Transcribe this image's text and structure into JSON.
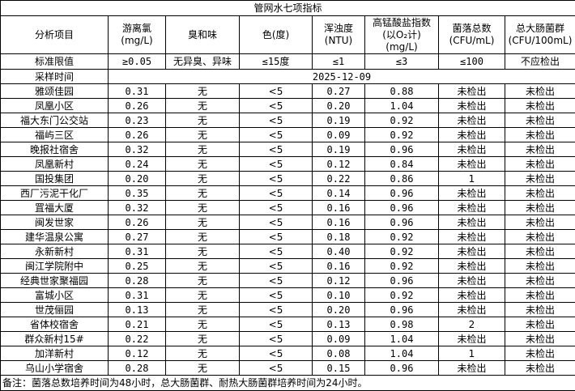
{
  "title": "管网水七项指标",
  "headers": [
    [
      "分析项目"
    ],
    [
      "游离氯",
      "(mg/L)"
    ],
    [
      "臭和味"
    ],
    [
      "色(度)"
    ],
    [
      "浑浊度",
      "(NTU)"
    ],
    [
      "高锰酸盐指数",
      "(以O₂计)",
      "(mg/L)"
    ],
    [
      "菌落总数",
      "(CFU/mL)"
    ],
    [
      "总大肠菌群",
      "(CFU/100mL)"
    ]
  ],
  "standard": [
    "标准限值",
    "≥0.05",
    "无异臭、异味",
    "≤15度",
    "≤1",
    "≤3",
    "≤100",
    "不应检出"
  ],
  "sampling": {
    "label": "采样时间",
    "date": "2025-12-09"
  },
  "rows": [
    [
      "雅颂佳园",
      "0.31",
      "无",
      "<5",
      "0.27",
      "0.88",
      "未检出",
      "未检出"
    ],
    [
      "凤凰小区",
      "0.26",
      "无",
      "<5",
      "0.20",
      "1.04",
      "未检出",
      "未检出"
    ],
    [
      "福大东门公交站",
      "0.23",
      "无",
      "<5",
      "0.19",
      "0.92",
      "未检出",
      "未检出"
    ],
    [
      "福屿三区",
      "0.26",
      "无",
      "<5",
      "0.09",
      "0.92",
      "未检出",
      "未检出"
    ],
    [
      "晚报社宿舍",
      "0.32",
      "无",
      "<5",
      "0.19",
      "0.96",
      "未检出",
      "未检出"
    ],
    [
      "凤凰新村",
      "0.24",
      "无",
      "<5",
      "0.12",
      "0.84",
      "未检出",
      "未检出"
    ],
    [
      "国投集团",
      "0.20",
      "无",
      "<5",
      "0.22",
      "0.86",
      "1",
      "未检出"
    ],
    [
      "西厂污泥干化厂",
      "0.35",
      "无",
      "<5",
      "0.14",
      "0.96",
      "未检出",
      "未检出"
    ],
    [
      "罝福大厦",
      "0.32",
      "无",
      "<5",
      "0.16",
      "0.96",
      "未检出",
      "未检出"
    ],
    [
      "闽发世家",
      "0.26",
      "无",
      "<5",
      "0.16",
      "0.96",
      "未检出",
      "未检出"
    ],
    [
      "建华温泉公寓",
      "0.27",
      "无",
      "<5",
      "0.18",
      "0.92",
      "未检出",
      "未检出"
    ],
    [
      "永新新村",
      "0.31",
      "无",
      "<5",
      "0.40",
      "0.92",
      "未检出",
      "未检出"
    ],
    [
      "闽江学院附中",
      "0.25",
      "无",
      "<5",
      "0.16",
      "0.92",
      "未检出",
      "未检出"
    ],
    [
      "经典世家聚福园",
      "0.28",
      "无",
      "<5",
      "0.12",
      "0.96",
      "未检出",
      "未检出"
    ],
    [
      "富城小区",
      "0.31",
      "无",
      "<5",
      "0.10",
      "0.92",
      "未检出",
      "未检出"
    ],
    [
      "世茂俪园",
      "0.13",
      "无",
      "<5",
      "0.20",
      "0.96",
      "未检出",
      "未检出"
    ],
    [
      "省体校宿舍",
      "0.21",
      "无",
      "<5",
      "0.13",
      "0.98",
      "2",
      "未检出"
    ],
    [
      "群众新村15#",
      "0.22",
      "无",
      "<5",
      "0.09",
      "1.04",
      "未检出",
      "未检出"
    ],
    [
      "加洋新村",
      "0.12",
      "无",
      "<5",
      "0.08",
      "1.04",
      "1",
      "未检出"
    ],
    [
      "乌山小学宿舍",
      "0.28",
      "无",
      "<5",
      "0.15",
      "0.96",
      "未检出",
      "未检出"
    ]
  ],
  "note": "备注：菌落总数培养时间为48小时，总大肠菌群、耐热大肠菌群培养时间为24小时。"
}
